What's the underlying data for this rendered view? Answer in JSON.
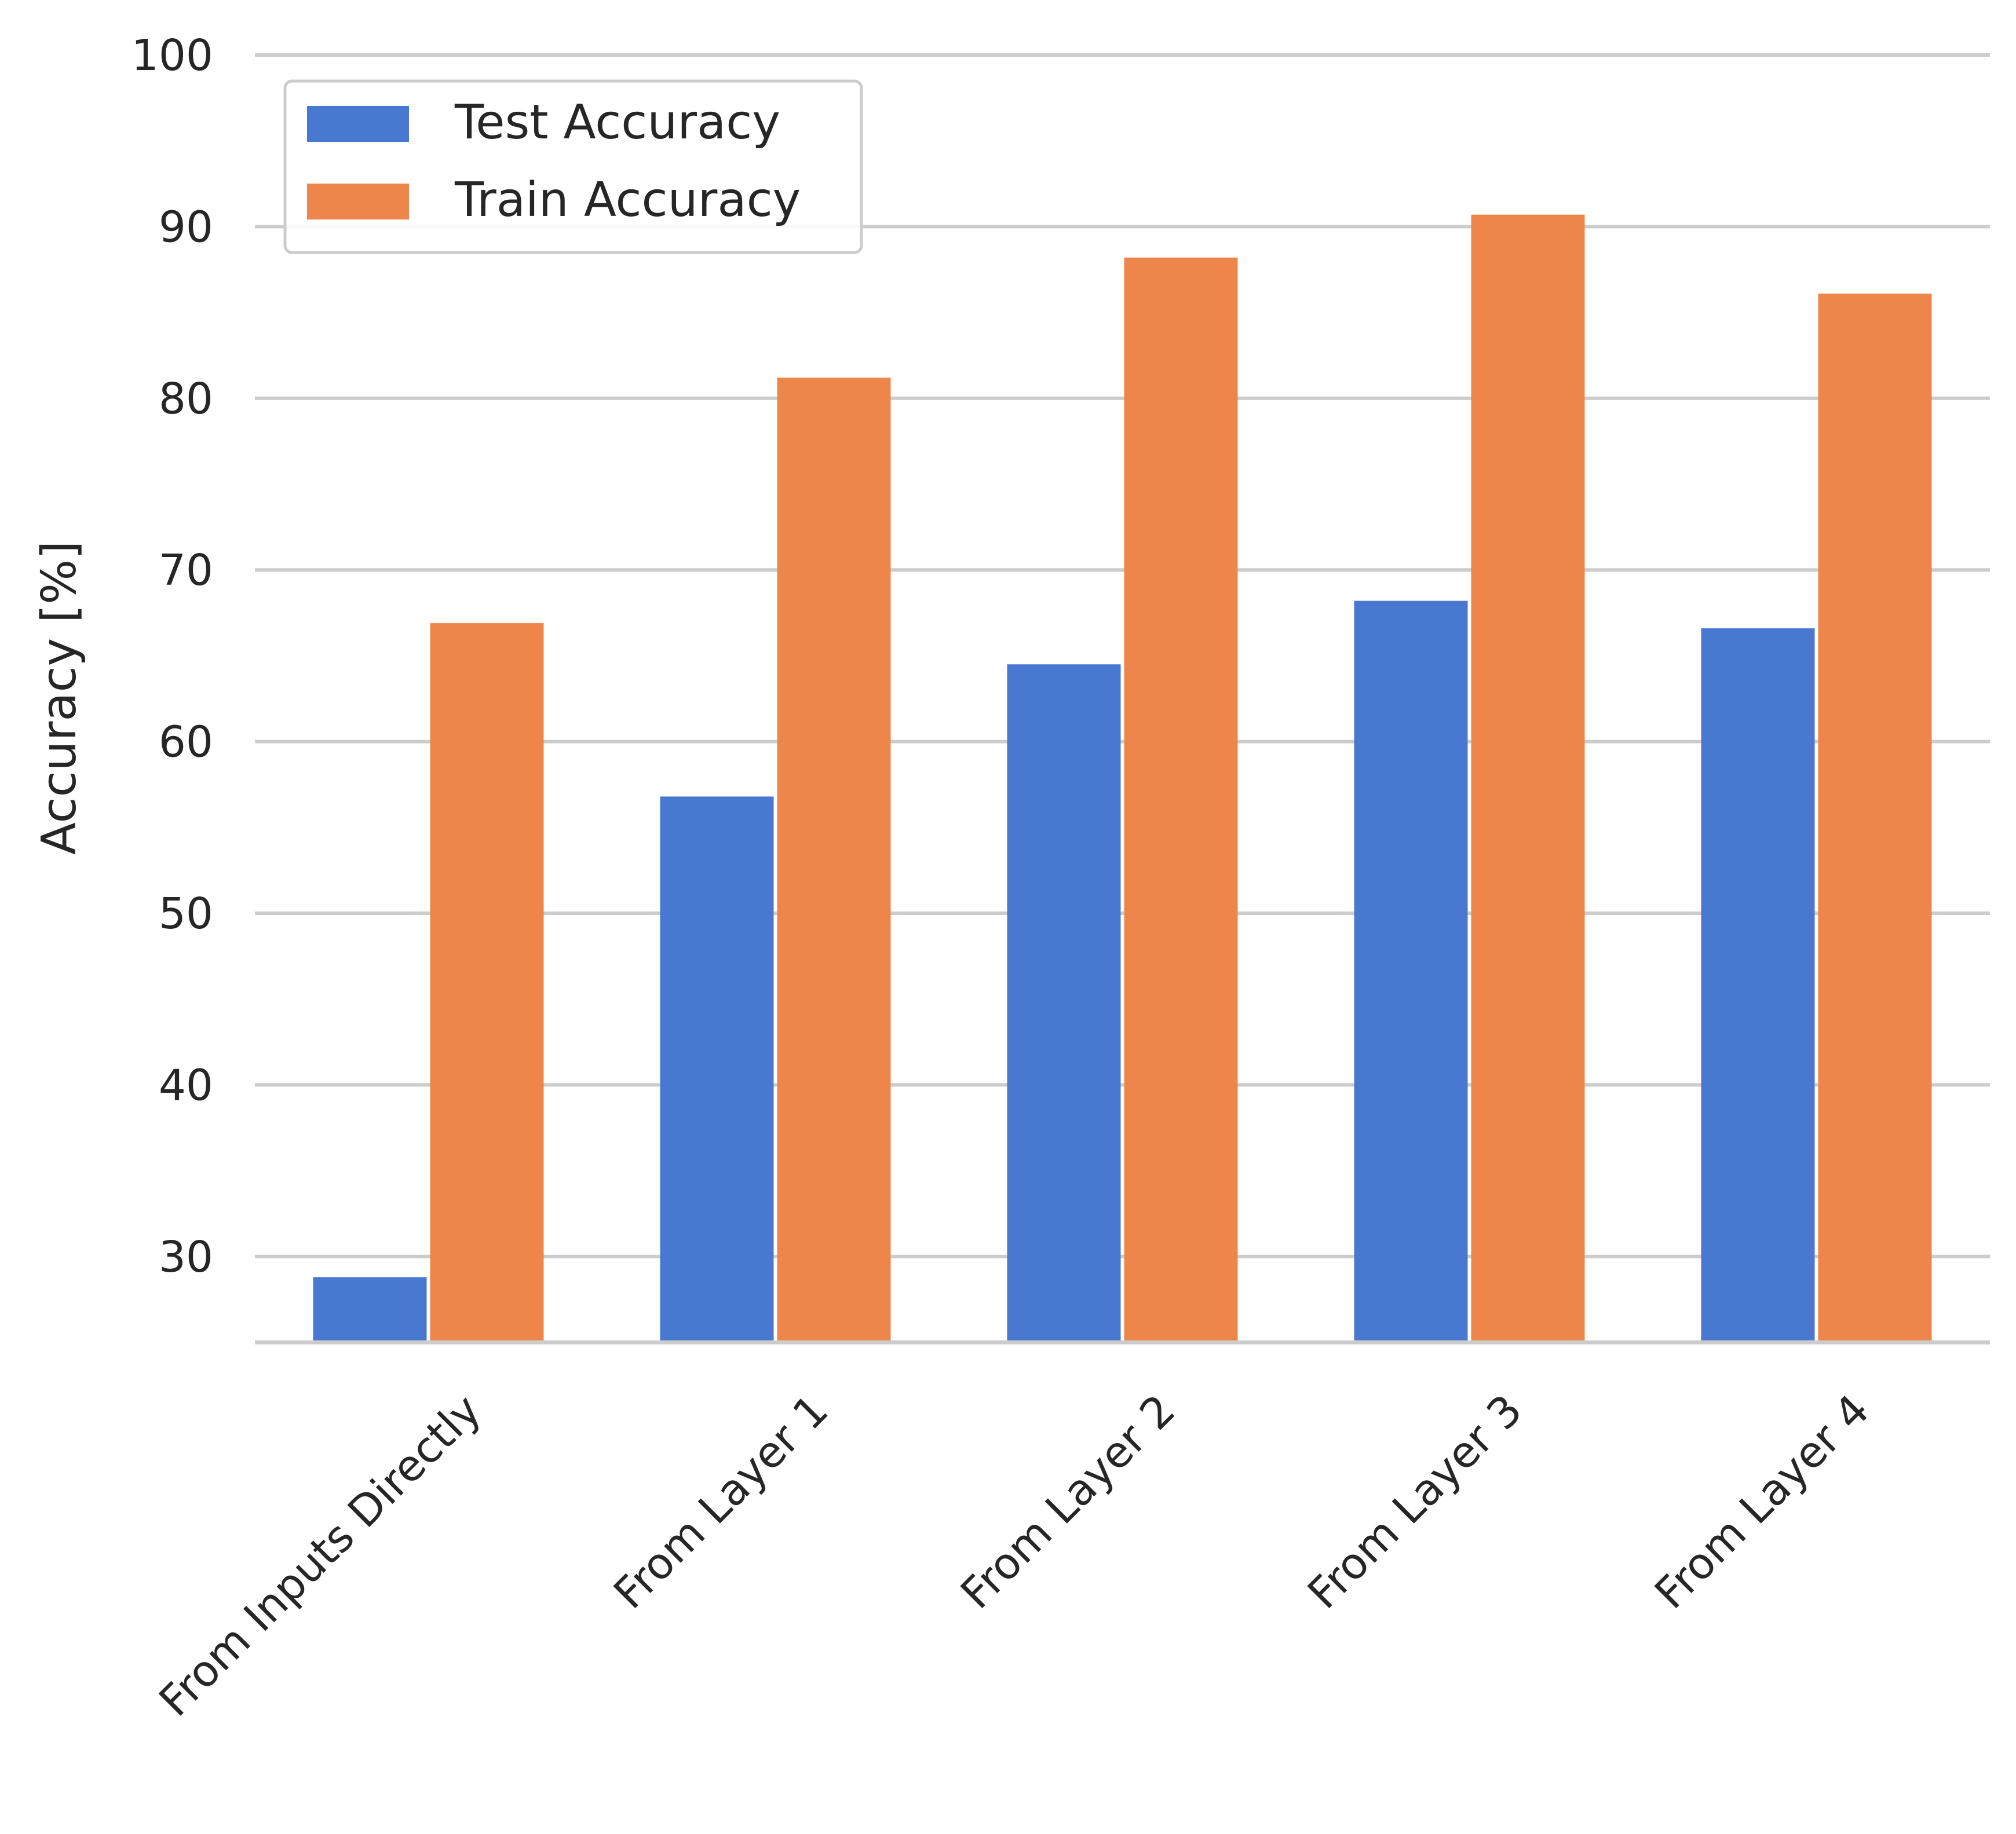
{
  "chart_data": {
    "type": "bar",
    "title": "",
    "xlabel": "",
    "ylabel": "Accuracy [%]",
    "ylim": [
      25,
      100
    ],
    "yticks": [
      30,
      40,
      50,
      60,
      70,
      80,
      90,
      100
    ],
    "grid": true,
    "legend_position": "top-left",
    "categories": [
      "From Inputs Directly",
      "From Layer 1",
      "From Layer 2",
      "From Layer 3",
      "From Layer 4"
    ],
    "series": [
      {
        "name": "Test Accuracy",
        "color": "#4878d0",
        "values": [
          28.8,
          56.8,
          64.5,
          68.2,
          66.6
        ]
      },
      {
        "name": "Train Accuracy",
        "color": "#ee854a",
        "values": [
          66.9,
          81.2,
          88.2,
          90.7,
          86.1
        ]
      }
    ]
  }
}
